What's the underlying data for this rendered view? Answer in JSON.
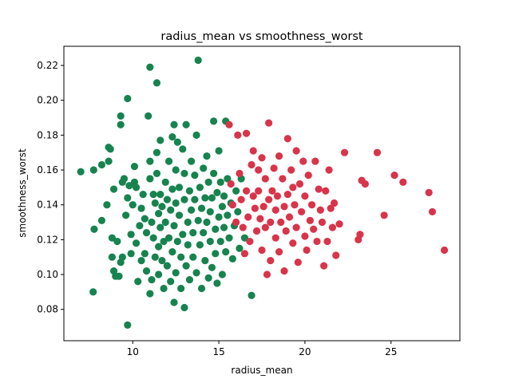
{
  "chart_data": {
    "type": "scatter",
    "title": "radius_mean vs smoothness_worst",
    "xlabel": "radius_mean",
    "ylabel": "smoothness_worst",
    "xlim": [
      6.0,
      29.0
    ],
    "ylim": [
      0.062,
      0.231
    ],
    "x_ticks": [
      10,
      15,
      20,
      25
    ],
    "y_ticks": [
      0.08,
      0.1,
      0.12,
      0.14,
      0.16,
      0.18,
      0.2,
      0.22
    ],
    "grid": false,
    "legend": "none",
    "series": [
      {
        "color": "#17834f",
        "points": [
          [
            6.98,
            0.159
          ],
          [
            7.73,
            0.16
          ],
          [
            7.76,
            0.126
          ],
          [
            7.7,
            0.09
          ],
          [
            8.2,
            0.131
          ],
          [
            8.2,
            0.163
          ],
          [
            8.6,
            0.165
          ],
          [
            8.6,
            0.173
          ],
          [
            8.7,
            0.172
          ],
          [
            8.5,
            0.14
          ],
          [
            8.9,
            0.149
          ],
          [
            8.8,
            0.11
          ],
          [
            8.8,
            0.121
          ],
          [
            8.9,
            0.102
          ],
          [
            9.0,
            0.099
          ],
          [
            9.1,
            0.119
          ],
          [
            9.2,
            0.099
          ],
          [
            9.3,
            0.186
          ],
          [
            9.3,
            0.191
          ],
          [
            9.4,
            0.153
          ],
          [
            9.5,
            0.155
          ],
          [
            9.3,
            0.107
          ],
          [
            9.4,
            0.11
          ],
          [
            9.6,
            0.134
          ],
          [
            9.7,
            0.144
          ],
          [
            9.7,
            0.201
          ],
          [
            9.7,
            0.071
          ],
          [
            9.8,
            0.151
          ],
          [
            9.9,
            0.123
          ],
          [
            9.9,
            0.112
          ],
          [
            10.0,
            0.14
          ],
          [
            10.1,
            0.162
          ],
          [
            10.1,
            0.153
          ],
          [
            10.2,
            0.15
          ],
          [
            10.2,
            0.118
          ],
          [
            10.3,
            0.096
          ],
          [
            10.4,
            0.128
          ],
          [
            10.5,
            0.138
          ],
          [
            10.5,
            0.108
          ],
          [
            10.6,
            0.146
          ],
          [
            10.7,
            0.132
          ],
          [
            10.7,
            0.112
          ],
          [
            10.8,
            0.124
          ],
          [
            10.8,
            0.102
          ],
          [
            10.9,
            0.191
          ],
          [
            11.0,
            0.219
          ],
          [
            11.0,
            0.165
          ],
          [
            11.0,
            0.155
          ],
          [
            11.0,
            0.089
          ],
          [
            11.1,
            0.13
          ],
          [
            11.1,
            0.097
          ],
          [
            11.2,
            0.146
          ],
          [
            11.2,
            0.121
          ],
          [
            11.3,
            0.141
          ],
          [
            11.3,
            0.11
          ],
          [
            11.4,
            0.21
          ],
          [
            11.4,
            0.17
          ],
          [
            11.4,
            0.158
          ],
          [
            11.5,
            0.135
          ],
          [
            11.5,
            0.116
          ],
          [
            11.5,
            0.1
          ],
          [
            11.6,
            0.177
          ],
          [
            11.6,
            0.146
          ],
          [
            11.6,
            0.127
          ],
          [
            11.7,
            0.139
          ],
          [
            11.7,
            0.108
          ],
          [
            11.8,
            0.119
          ],
          [
            11.8,
            0.092
          ],
          [
            11.9,
            0.153
          ],
          [
            11.9,
            0.13
          ],
          [
            12.0,
            0.143
          ],
          [
            12.0,
            0.105
          ],
          [
            12.1,
            0.165
          ],
          [
            12.1,
            0.121
          ],
          [
            12.2,
            0.096
          ],
          [
            12.2,
            0.137
          ],
          [
            12.3,
            0.179
          ],
          [
            12.3,
            0.149
          ],
          [
            12.3,
            0.113
          ],
          [
            12.4,
            0.186
          ],
          [
            12.4,
            0.128
          ],
          [
            12.4,
            0.084
          ],
          [
            12.5,
            0.16
          ],
          [
            12.5,
            0.141
          ],
          [
            12.5,
            0.101
          ],
          [
            12.6,
            0.119
          ],
          [
            12.6,
            0.176
          ],
          [
            12.7,
            0.134
          ],
          [
            12.7,
            0.15
          ],
          [
            12.8,
            0.11
          ],
          [
            12.8,
            0.092
          ],
          [
            12.9,
            0.123
          ],
          [
            12.9,
            0.172
          ],
          [
            13.0,
            0.143
          ],
          [
            13.0,
            0.158
          ],
          [
            13.0,
            0.081
          ],
          [
            13.1,
            0.105
          ],
          [
            13.1,
            0.186
          ],
          [
            13.2,
            0.13
          ],
          [
            13.2,
            0.117
          ],
          [
            13.3,
            0.148
          ],
          [
            13.3,
            0.097
          ],
          [
            13.4,
            0.137
          ],
          [
            13.4,
            0.165
          ],
          [
            13.5,
            0.124
          ],
          [
            13.5,
            0.11
          ],
          [
            13.6,
            0.157
          ],
          [
            13.6,
            0.143
          ],
          [
            13.7,
            0.18
          ],
          [
            13.7,
            0.101
          ],
          [
            13.8,
            0.223
          ],
          [
            13.8,
            0.131
          ],
          [
            13.9,
            0.117
          ],
          [
            13.9,
            0.15
          ],
          [
            14.0,
            0.138
          ],
          [
            14.0,
            0.092
          ],
          [
            14.1,
            0.161
          ],
          [
            14.1,
            0.124
          ],
          [
            14.2,
            0.108
          ],
          [
            14.2,
            0.144
          ],
          [
            14.3,
            0.13
          ],
          [
            14.3,
            0.168
          ],
          [
            14.4,
            0.098
          ],
          [
            14.4,
            0.153
          ],
          [
            14.5,
            0.119
          ],
          [
            14.5,
            0.136
          ],
          [
            14.6,
            0.144
          ],
          [
            14.6,
            0.104
          ],
          [
            14.7,
            0.188
          ],
          [
            14.7,
            0.158
          ],
          [
            14.8,
            0.126
          ],
          [
            14.8,
            0.112
          ],
          [
            14.9,
            0.147
          ],
          [
            14.9,
            0.095
          ],
          [
            15.0,
            0.133
          ],
          [
            15.0,
            0.171
          ],
          [
            15.1,
            0.119
          ],
          [
            15.1,
            0.153
          ],
          [
            15.2,
            0.139
          ],
          [
            15.2,
            0.1
          ],
          [
            15.3,
            0.127
          ],
          [
            15.3,
            0.145
          ],
          [
            15.4,
            0.188
          ],
          [
            15.4,
            0.113
          ],
          [
            15.5,
            0.134
          ],
          [
            15.5,
            0.155
          ],
          [
            15.6,
            0.121
          ],
          [
            15.7,
            0.141
          ],
          [
            15.8,
            0.109
          ],
          [
            15.9,
            0.128
          ],
          [
            16.0,
            0.148
          ],
          [
            16.1,
            0.136
          ],
          [
            16.2,
            0.115
          ],
          [
            16.3,
            0.155
          ],
          [
            16.5,
            0.121
          ],
          [
            16.9,
            0.088
          ]
        ]
      },
      {
        "color": "#d8344a",
        "points": [
          [
            15.6,
            0.186
          ],
          [
            15.7,
            0.152
          ],
          [
            15.8,
            0.14
          ],
          [
            16.0,
            0.13
          ],
          [
            16.1,
            0.18
          ],
          [
            16.2,
            0.158
          ],
          [
            16.3,
            0.143
          ],
          [
            16.4,
            0.127
          ],
          [
            16.5,
            0.112
          ],
          [
            16.6,
            0.148
          ],
          [
            16.6,
            0.181
          ],
          [
            16.7,
            0.133
          ],
          [
            16.8,
            0.119
          ],
          [
            16.9,
            0.163
          ],
          [
            17.0,
            0.171
          ],
          [
            17.0,
            0.145
          ],
          [
            17.1,
            0.138
          ],
          [
            17.2,
            0.125
          ],
          [
            17.3,
            0.16
          ],
          [
            17.3,
            0.148
          ],
          [
            17.4,
            0.132
          ],
          [
            17.5,
            0.114
          ],
          [
            17.5,
            0.167
          ],
          [
            17.6,
            0.139
          ],
          [
            17.7,
            0.127
          ],
          [
            17.7,
            0.155
          ],
          [
            17.8,
            0.1
          ],
          [
            17.9,
            0.143
          ],
          [
            17.9,
            0.187
          ],
          [
            18.0,
            0.13
          ],
          [
            18.0,
            0.108
          ],
          [
            18.1,
            0.148
          ],
          [
            18.2,
            0.161
          ],
          [
            18.3,
            0.121
          ],
          [
            18.3,
            0.137
          ],
          [
            18.4,
            0.145
          ],
          [
            18.5,
            0.168
          ],
          [
            18.5,
            0.113
          ],
          [
            18.6,
            0.13
          ],
          [
            18.7,
            0.155
          ],
          [
            18.8,
            0.139
          ],
          [
            18.8,
            0.102
          ],
          [
            18.9,
            0.125
          ],
          [
            19.0,
            0.146
          ],
          [
            19.0,
            0.178
          ],
          [
            19.1,
            0.133
          ],
          [
            19.2,
            0.16
          ],
          [
            19.3,
            0.118
          ],
          [
            19.3,
            0.15
          ],
          [
            19.4,
            0.14
          ],
          [
            19.5,
            0.171
          ],
          [
            19.5,
            0.127
          ],
          [
            19.6,
            0.107
          ],
          [
            19.7,
            0.152
          ],
          [
            19.8,
            0.136
          ],
          [
            19.9,
            0.165
          ],
          [
            20.0,
            0.122
          ],
          [
            20.0,
            0.145
          ],
          [
            20.1,
            0.114
          ],
          [
            20.2,
            0.157
          ],
          [
            20.3,
            0.131
          ],
          [
            20.4,
            0.14
          ],
          [
            20.5,
            0.126
          ],
          [
            20.6,
            0.165
          ],
          [
            20.7,
            0.119
          ],
          [
            20.8,
            0.149
          ],
          [
            20.9,
            0.137
          ],
          [
            21.0,
            0.13
          ],
          [
            21.1,
            0.105
          ],
          [
            21.2,
            0.148
          ],
          [
            21.3,
            0.119
          ],
          [
            21.4,
            0.16
          ],
          [
            21.5,
            0.138
          ],
          [
            21.6,
            0.127
          ],
          [
            21.7,
            0.141
          ],
          [
            21.8,
            0.111
          ],
          [
            22.0,
            0.129
          ],
          [
            22.3,
            0.17
          ],
          [
            23.1,
            0.12
          ],
          [
            23.2,
            0.123
          ],
          [
            23.3,
            0.154
          ],
          [
            23.5,
            0.152
          ],
          [
            24.2,
            0.17
          ],
          [
            24.6,
            0.134
          ],
          [
            25.2,
            0.157
          ],
          [
            25.7,
            0.153
          ],
          [
            27.2,
            0.147
          ],
          [
            27.4,
            0.136
          ],
          [
            28.1,
            0.114
          ]
        ]
      }
    ]
  }
}
